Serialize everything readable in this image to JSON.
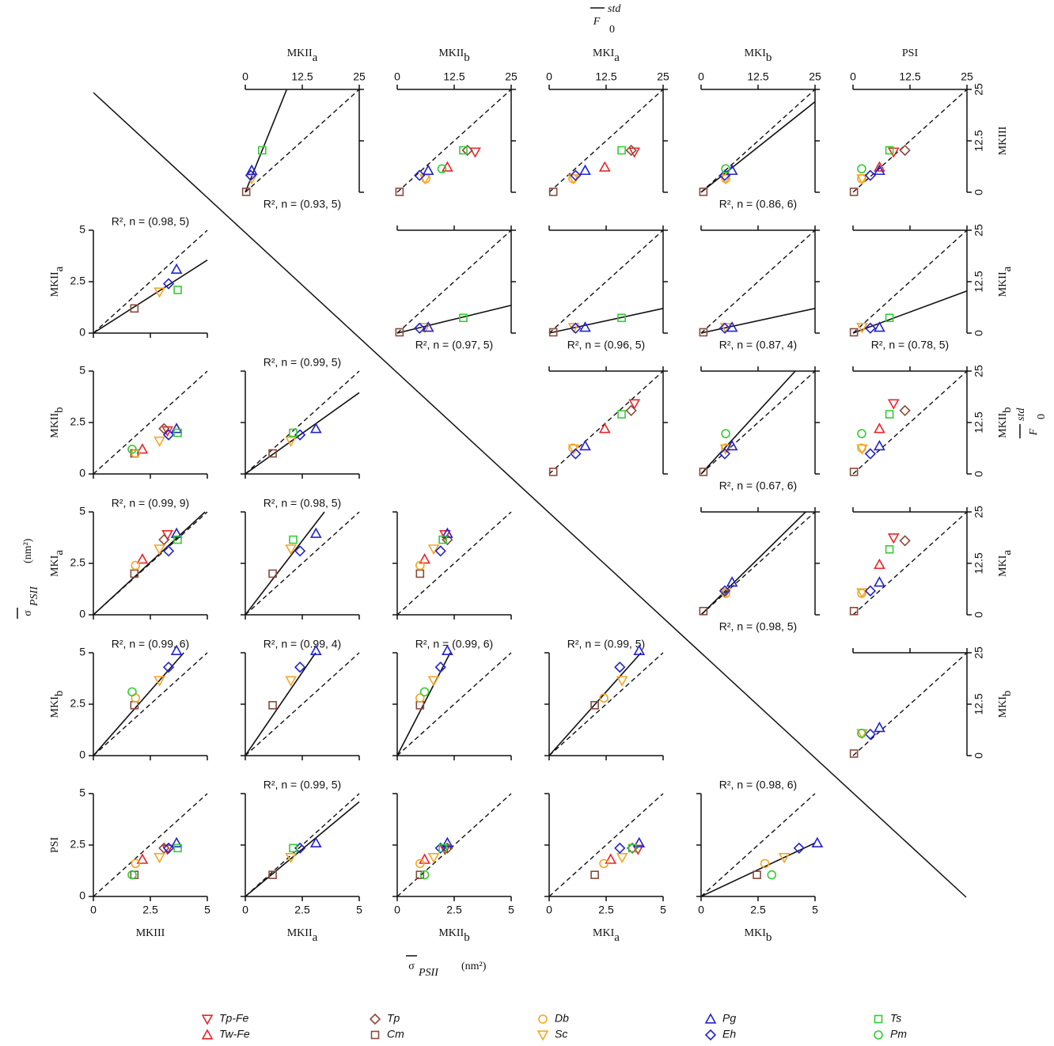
{
  "chart_data": {
    "type": "scatter_matrix",
    "top_label": {
      "symbol": "F",
      "sub": "0",
      "sup": "std"
    },
    "bottom_label": {
      "symbol": "σ",
      "sub": "PSII",
      "unit": "(nm²)"
    },
    "sigma_lim": [
      0,
      5
    ],
    "sigma_ticks": [
      0,
      2.5,
      5
    ],
    "f0_lim": [
      0,
      25
    ],
    "f0_ticks": [
      0,
      12.5,
      25
    ],
    "one_to_one": true,
    "legend": "bottom",
    "species": [
      {
        "name": "Tp-Fe",
        "color": "#e8262b",
        "marker": "triangle-down"
      },
      {
        "name": "Tw-Fe",
        "color": "#e8262b",
        "marker": "triangle-up"
      },
      {
        "name": "Tp",
        "color": "#8b4a3a",
        "marker": "diamond"
      },
      {
        "name": "Cm",
        "color": "#8b4a3a",
        "marker": "square"
      },
      {
        "name": "Db",
        "color": "#f5a623",
        "marker": "circle"
      },
      {
        "name": "Sc",
        "color": "#f5a623",
        "marker": "triangle-down"
      },
      {
        "name": "Pg",
        "color": "#2222d0",
        "marker": "triangle-up"
      },
      {
        "name": "Eh",
        "color": "#2222d0",
        "marker": "diamond"
      },
      {
        "name": "Ts",
        "color": "#33cc33",
        "marker": "square"
      },
      {
        "name": "Pm",
        "color": "#33cc33",
        "marker": "circle"
      }
    ],
    "variables": [
      {
        "name": "MKIII",
        "sigma": [
          3.25,
          2.15,
          3.1,
          1.8,
          1.85,
          2.9,
          3.65,
          3.3,
          3.7,
          1.7
        ],
        "f0": [
          9.8,
          6.1,
          10.2,
          0.1,
          3.3,
          3.3,
          5.3,
          4.1,
          10.2,
          5.7
        ]
      },
      {
        "name": "MKII",
        "sub": "a",
        "sigma": [
          null,
          null,
          null,
          1.2,
          null,
          2.0,
          3.1,
          2.4,
          2.1,
          null
        ],
        "f0": [
          null,
          null,
          null,
          0.2,
          null,
          1.4,
          1.4,
          1.2,
          3.7,
          null
        ]
      },
      {
        "name": "MKII",
        "sub": "b",
        "sigma": [
          2.1,
          1.2,
          2.2,
          1.0,
          1.0,
          1.6,
          2.2,
          1.9,
          2.0,
          1.2
        ],
        "f0": [
          17.1,
          11.0,
          15.4,
          0.5,
          6.3,
          6.1,
          6.8,
          4.9,
          14.5,
          9.8
        ]
      },
      {
        "name": "MKI",
        "sub": "a",
        "sigma": [
          3.9,
          2.7,
          3.65,
          2.0,
          2.4,
          3.2,
          3.95,
          3.1,
          3.65,
          null
        ],
        "f0": [
          18.7,
          12.2,
          18.0,
          0.9,
          5.2,
          5.4,
          7.9,
          5.8,
          15.9,
          null
        ]
      },
      {
        "name": "MKI",
        "sub": "b",
        "sigma": [
          null,
          null,
          null,
          2.45,
          2.8,
          3.65,
          5.1,
          4.3,
          null,
          3.1
        ],
        "f0": [
          null,
          null,
          null,
          0.5,
          5.4,
          5.4,
          6.8,
          5.2,
          null,
          5.4
        ]
      },
      {
        "name": "PSI",
        "sigma": [
          2.3,
          1.8,
          2.35,
          1.05,
          1.6,
          1.9,
          2.6,
          2.35,
          2.35,
          1.05
        ],
        "f0": [
          8.9,
          5.8,
          11.4,
          0.2,
          1.9,
          2.0,
          5.8,
          3.8,
          8.0,
          1.9
        ]
      }
    ],
    "panels": [
      {
        "row": 0,
        "col": 1,
        "fit_slope": 2.75,
        "annotation": "R², n = (0.93, 5)"
      },
      {
        "row": 0,
        "col": 2
      },
      {
        "row": 0,
        "col": 3
      },
      {
        "row": 0,
        "col": 4,
        "fit_slope": 0.88,
        "annotation": "R², n = (0.86, 6)"
      },
      {
        "row": 0,
        "col": 5
      },
      {
        "row": 1,
        "col": 2,
        "fit_slope": 0.27,
        "annotation": "R², n = (0.97, 5)"
      },
      {
        "row": 1,
        "col": 3,
        "fit_slope": 0.24,
        "annotation": "R², n = (0.96, 5)"
      },
      {
        "row": 1,
        "col": 4,
        "fit_slope": 0.24,
        "annotation": "R², n = (0.87, 4)"
      },
      {
        "row": 1,
        "col": 5,
        "fit_slope": 0.41,
        "annotation": "R², n = (0.78, 5)"
      },
      {
        "row": 2,
        "col": 3
      },
      {
        "row": 2,
        "col": 4,
        "fit_slope": 1.21,
        "annotation": "R², n = (0.67, 6)"
      },
      {
        "row": 2,
        "col": 5
      },
      {
        "row": 3,
        "col": 4,
        "fit_slope": 1.09,
        "annotation": "R², n = (0.98, 5)"
      },
      {
        "row": 3,
        "col": 5
      },
      {
        "row": 4,
        "col": 5
      },
      {
        "row": 1,
        "col": 0,
        "fit_slope": 0.71,
        "annotation": "R², n = (0.98, 5)"
      },
      {
        "row": 2,
        "col": 0
      },
      {
        "row": 2,
        "col": 1,
        "fit_slope": 0.79,
        "annotation": "R², n = (0.99, 5)"
      },
      {
        "row": 3,
        "col": 0,
        "fit_slope": 1.02,
        "annotation": "R², n = (0.99, 9)"
      },
      {
        "row": 3,
        "col": 1,
        "fit_slope": 1.44,
        "annotation": "R², n = (0.98, 5)"
      },
      {
        "row": 3,
        "col": 2
      },
      {
        "row": 4,
        "col": 0,
        "fit_slope": 1.26,
        "annotation": "R², n = (0.99, 6)"
      },
      {
        "row": 4,
        "col": 1,
        "fit_slope": 1.62,
        "annotation": "R², n = (0.99, 4)"
      },
      {
        "row": 4,
        "col": 2,
        "fit_slope": 2.15,
        "annotation": "R², n = (0.99, 6)"
      },
      {
        "row": 4,
        "col": 3,
        "fit_slope": 1.24,
        "annotation": "R², n = (0.99, 5)"
      },
      {
        "row": 5,
        "col": 0
      },
      {
        "row": 5,
        "col": 1,
        "fit_slope": 0.92,
        "annotation": "R², n = (0.99, 5)"
      },
      {
        "row": 5,
        "col": 2
      },
      {
        "row": 5,
        "col": 3
      },
      {
        "row": 5,
        "col": 4,
        "fit_slope": 0.52,
        "annotation": "R², n = (0.98, 6)"
      }
    ]
  }
}
